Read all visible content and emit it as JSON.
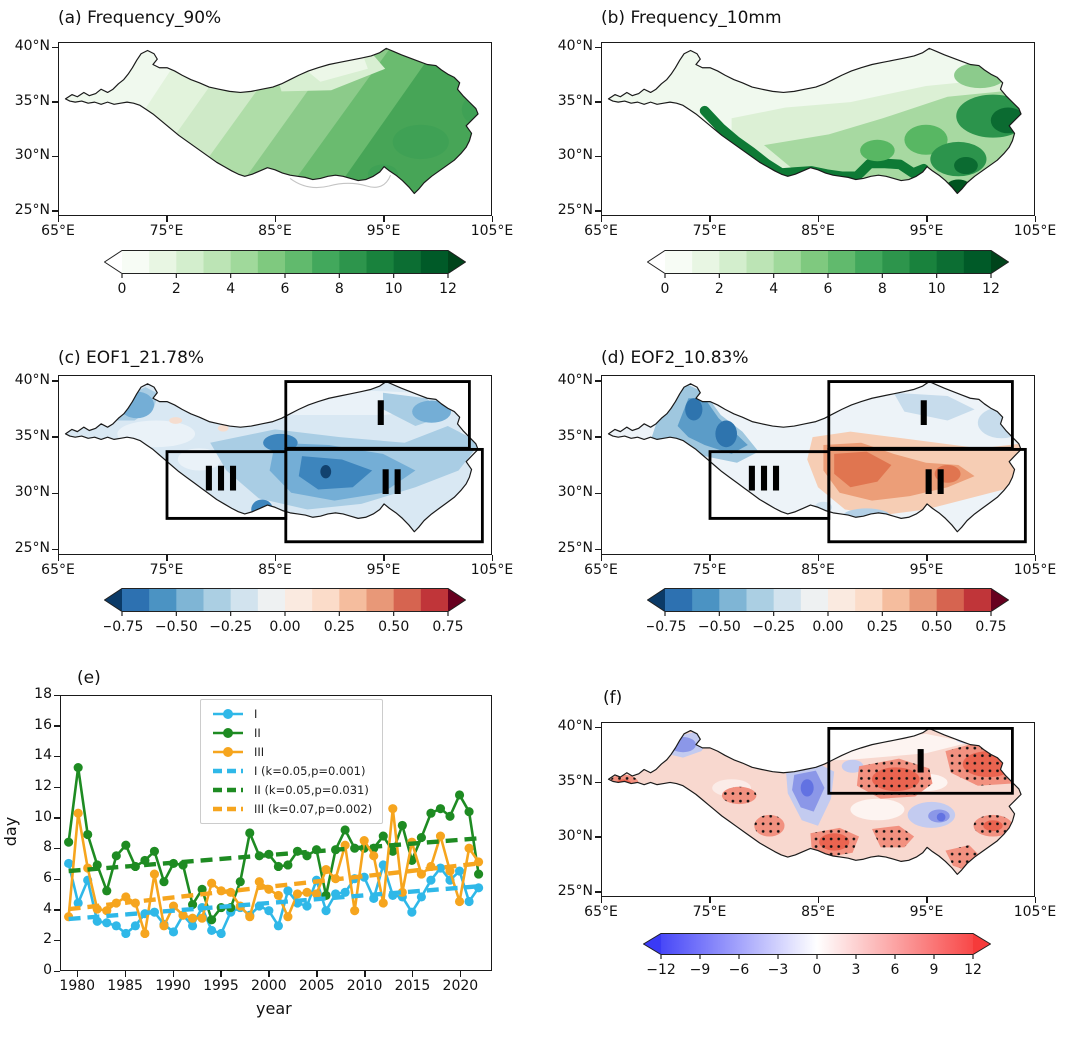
{
  "figure_type": "6-panel climate figure, Tibetan Plateau precipitation-frequency analysis",
  "chart_data": [
    {
      "id": "a",
      "type": "heatmap",
      "subtype": "filled-contour-map",
      "title": "(a) Frequency_90%",
      "lon_range": [
        65,
        105
      ],
      "lat_range": [
        24.5,
        40.5
      ],
      "lon_ticks": {
        "values": [
          65,
          75,
          85,
          95,
          105
        ],
        "labels": [
          "65°E",
          "75°E",
          "85°E",
          "95°E",
          "105°E"
        ]
      },
      "lat_ticks": {
        "values": [
          40,
          35,
          30,
          25
        ],
        "labels": [
          "40°N",
          "35°N",
          "30°N",
          "25°N"
        ]
      },
      "colorbar": {
        "style": "discrete",
        "vmin": 0,
        "vmax": 12,
        "colors": [
          "#f7fcf5",
          "#e8f6e3",
          "#d3eecd",
          "#bce4b5",
          "#a0d99b",
          "#7fc97f",
          "#61ba6d",
          "#42a85c",
          "#2d954c",
          "#19823d",
          "#0c6e33",
          "#005a28"
        ],
        "under": "#ffffff",
        "over": "#00441b",
        "ticks": {
          "values": [
            0,
            2,
            4,
            6,
            8,
            10,
            12
          ],
          "labels": [
            "0",
            "2",
            "4",
            "6",
            "8",
            "10",
            "12"
          ]
        }
      },
      "pattern": "days of precipitation above 90th percentile: low (0-3) in northwest arm, increasing southeastward to 8-10 in the southeast"
    },
    {
      "id": "b",
      "type": "heatmap",
      "subtype": "filled-contour-map",
      "title": "(b) Frequency_10mm",
      "lon_range": [
        65,
        105
      ],
      "lat_range": [
        24.5,
        40.5
      ],
      "lon_ticks": {
        "values": [
          65,
          75,
          85,
          95,
          105
        ],
        "labels": [
          "65°E",
          "75°E",
          "85°E",
          "95°E",
          "105°E"
        ]
      },
      "lat_ticks": {
        "values": [
          40,
          35,
          30,
          25
        ],
        "labels": [
          "40°N",
          "35°N",
          "30°N",
          "25°N"
        ]
      },
      "colorbar": {
        "style": "discrete",
        "vmin": 0,
        "vmax": 12,
        "colors": [
          "#f7fcf5",
          "#e8f6e3",
          "#d3eecd",
          "#bce4b5",
          "#a0d99b",
          "#7fc97f",
          "#61ba6d",
          "#42a85c",
          "#2d954c",
          "#19823d",
          "#0c6e33",
          "#005a28"
        ],
        "under": "#ffffff",
        "over": "#00441b",
        "ticks": {
          "values": [
            0,
            2,
            4,
            6,
            8,
            10,
            12
          ],
          "labels": [
            "0",
            "2",
            "4",
            "6",
            "8",
            "10",
            "12"
          ]
        }
      },
      "pattern": "days with precipitation >=10mm: very low (<2) across north and west, 8-12 along southern Himalayan fringe and in the southeast/east"
    },
    {
      "id": "c",
      "type": "heatmap",
      "subtype": "filled-contour-map",
      "title": "(c) EOF1_21.78%",
      "lon_range": [
        65,
        105
      ],
      "lat_range": [
        24.5,
        40.5
      ],
      "lon_ticks": {
        "values": [
          65,
          75,
          85,
          95,
          105
        ],
        "labels": [
          "65°E",
          "75°E",
          "85°E",
          "95°E",
          "105°E"
        ]
      },
      "lat_ticks": {
        "values": [
          40,
          35,
          30,
          25
        ],
        "labels": [
          "40°N",
          "35°N",
          "30°N",
          "25°N"
        ]
      },
      "colorbar": {
        "style": "discrete",
        "vmin": -0.75,
        "vmax": 0.75,
        "colors": [
          "#2d71b1",
          "#4b93c3",
          "#7fb5d5",
          "#abcfe3",
          "#d2e3ee",
          "#eef1f2",
          "#faeae0",
          "#fbdcc9",
          "#f5bd9e",
          "#e89878",
          "#d66450",
          "#c03539"
        ],
        "under": "#0b3a67",
        "over": "#67001f",
        "ticks": {
          "values": [
            -0.75,
            -0.5,
            -0.25,
            0,
            0.25,
            0.5,
            0.75
          ],
          "labels": [
            "−0.75",
            "−0.50",
            "−0.25",
            "0.00",
            "0.25",
            "0.50",
            "0.75"
          ]
        }
      },
      "regions": [
        {
          "label": "I",
          "lon_min": 86,
          "lon_max": 103,
          "lat_min": 34,
          "lat_max": 40,
          "label_lon": 94.8,
          "label_lat": 37.2
        },
        {
          "label": "II",
          "lon_min": 86,
          "lon_max": 104.2,
          "lat_min": 25.6,
          "lat_max": 33.9,
          "label_lon": 95.8,
          "label_lat": 31.0
        },
        {
          "label": "III",
          "lon_min": 75,
          "lon_max": 86,
          "lat_min": 27.7,
          "lat_max": 33.7,
          "label_lon": 80.0,
          "label_lat": 31.3
        }
      ],
      "pattern": "EOF1 explains 21.78% of variance; loadings predominantly negative (blue), strongest -0.5 to -0.75 over the central plateau"
    },
    {
      "id": "d",
      "type": "heatmap",
      "subtype": "filled-contour-map",
      "title": "(d) EOF2_10.83%",
      "lon_range": [
        65,
        105
      ],
      "lat_range": [
        24.5,
        40.5
      ],
      "lon_ticks": {
        "values": [
          65,
          75,
          85,
          95,
          105
        ],
        "labels": [
          "65°E",
          "75°E",
          "85°E",
          "95°E",
          "105°E"
        ]
      },
      "lat_ticks": {
        "values": [
          40,
          35,
          30,
          25
        ],
        "labels": [
          "40°N",
          "35°N",
          "30°N",
          "25°N"
        ]
      },
      "colorbar": {
        "style": "discrete",
        "vmin": -0.75,
        "vmax": 0.75,
        "colors": [
          "#2d71b1",
          "#4b93c3",
          "#7fb5d5",
          "#abcfe3",
          "#d2e3ee",
          "#eef1f2",
          "#faeae0",
          "#fbdcc9",
          "#f5bd9e",
          "#e89878",
          "#d66450",
          "#c03539"
        ],
        "under": "#0b3a67",
        "over": "#67001f",
        "ticks": {
          "values": [
            -0.75,
            -0.5,
            -0.25,
            0,
            0.25,
            0.5,
            0.75
          ],
          "labels": [
            "−0.75",
            "−0.50",
            "−0.25",
            "0.00",
            "0.25",
            "0.50",
            "0.75"
          ]
        }
      },
      "regions": [
        {
          "label": "I",
          "lon_min": 86,
          "lon_max": 103,
          "lat_min": 34,
          "lat_max": 40,
          "label_lon": 94.8,
          "label_lat": 37.2
        },
        {
          "label": "II",
          "lon_min": 86,
          "lon_max": 104.2,
          "lat_min": 25.6,
          "lat_max": 33.9,
          "label_lon": 95.8,
          "label_lat": 31.0
        },
        {
          "label": "III",
          "lon_min": 75,
          "lon_max": 86,
          "lat_min": 27.7,
          "lat_max": 33.7,
          "label_lon": 80.0,
          "label_lat": 31.3
        }
      ],
      "pattern": "EOF2 explains 10.83% of variance; west-east dipole with negative (blue) loadings northwest and positive (red/orange) loadings over the central-east plateau"
    },
    {
      "id": "e",
      "type": "line",
      "title": "(e)",
      "xlabel": "year",
      "ylabel": "day",
      "xlim": [
        1978.2,
        2023.3
      ],
      "ylim": [
        0,
        18
      ],
      "x_ticks": {
        "values": [
          1980,
          1985,
          1990,
          1995,
          2000,
          2005,
          2010,
          2015,
          2020
        ],
        "labels": [
          "1980",
          "1985",
          "1990",
          "1995",
          "2000",
          "2005",
          "2010",
          "2015",
          "2020"
        ]
      },
      "y_ticks": {
        "values": [
          0,
          2,
          4,
          6,
          8,
          10,
          12,
          14,
          16,
          18
        ],
        "labels": [
          "0",
          "2",
          "4",
          "6",
          "8",
          "10",
          "12",
          "14",
          "16",
          "18"
        ]
      },
      "years": [
        1979,
        1980,
        1981,
        1982,
        1983,
        1984,
        1985,
        1986,
        1987,
        1988,
        1989,
        1990,
        1991,
        1992,
        1993,
        1994,
        1995,
        1996,
        1997,
        1998,
        1999,
        2000,
        2001,
        2002,
        2003,
        2004,
        2005,
        2006,
        2007,
        2008,
        2009,
        2010,
        2011,
        2012,
        2013,
        2014,
        2015,
        2016,
        2017,
        2018,
        2019,
        2020,
        2021,
        2022
      ],
      "series": [
        {
          "name": "I",
          "color": "#2fb8e8",
          "values": [
            7.0,
            4.4,
            5.9,
            3.2,
            3.1,
            2.9,
            2.4,
            2.9,
            3.7,
            3.8,
            3.0,
            2.5,
            3.6,
            2.9,
            4.1,
            2.6,
            2.4,
            3.8,
            4.1,
            3.6,
            4.2,
            3.9,
            2.9,
            5.2,
            4.4,
            4.2,
            5.9,
            3.9,
            5.0,
            5.1,
            6.0,
            6.1,
            4.7,
            6.9,
            4.9,
            4.8,
            3.8,
            4.8,
            5.9,
            6.7,
            5.9,
            6.5,
            4.5,
            5.4
          ]
        },
        {
          "name": "II",
          "color": "#1e8b22",
          "values": [
            8.4,
            13.3,
            8.9,
            6.9,
            5.2,
            7.5,
            8.2,
            6.8,
            7.2,
            7.8,
            5.8,
            7.0,
            6.9,
            4.3,
            5.3,
            3.3,
            4.1,
            4.1,
            5.8,
            9.0,
            7.5,
            7.6,
            6.8,
            6.9,
            7.8,
            7.5,
            7.9,
            4.9,
            7.9,
            9.2,
            8.0,
            8.0,
            8.0,
            8.8,
            7.8,
            9.5,
            7.2,
            8.7,
            10.3,
            10.6,
            10.1,
            11.5,
            10.4,
            6.3
          ]
        },
        {
          "name": "III",
          "color": "#f6a51e",
          "values": [
            3.5,
            10.3,
            6.7,
            4.0,
            3.9,
            4.4,
            4.8,
            4.4,
            2.4,
            6.3,
            2.9,
            4.2,
            3.6,
            3.4,
            3.4,
            5.7,
            5.2,
            5.1,
            4.2,
            3.5,
            5.8,
            5.3,
            4.9,
            3.5,
            5.0,
            5.1,
            5.0,
            6.6,
            6.0,
            8.2,
            3.9,
            8.5,
            7.5,
            4.4,
            10.6,
            5.1,
            8.4,
            6.3,
            6.8,
            8.8,
            6.5,
            4.5,
            8.0,
            7.1
          ]
        }
      ],
      "trend_lines": [
        {
          "name": "I",
          "label": "I (k=0.05,p=0.001)",
          "k": 0.05,
          "p": 0.001,
          "color": "#2fb8e8",
          "start_year": 1979,
          "end_year": 2022,
          "start_value": 3.35,
          "end_value": 5.5
        },
        {
          "name": "II",
          "label": "II (k=0.05,p=0.031)",
          "k": 0.05,
          "p": 0.031,
          "color": "#1e8b22",
          "start_year": 1979,
          "end_year": 2022,
          "start_value": 6.5,
          "end_value": 8.65
        },
        {
          "name": "III",
          "label": "III (k=0.07,p=0.002)",
          "k": 0.07,
          "p": 0.002,
          "color": "#f6a51e",
          "start_year": 1979,
          "end_year": 2022,
          "start_value": 4.0,
          "end_value": 7.0
        }
      ],
      "legend_position": "upper center-left",
      "grid": false
    },
    {
      "id": "f",
      "type": "heatmap",
      "subtype": "filled-contour-map-with-stippling",
      "title": "(f)",
      "lon_range": [
        65,
        105
      ],
      "lat_range": [
        24.5,
        40.5
      ],
      "lon_ticks": {
        "values": [
          65,
          75,
          85,
          95,
          105
        ],
        "labels": [
          "65°E",
          "75°E",
          "85°E",
          "95°E",
          "105°E"
        ]
      },
      "lat_ticks": {
        "values": [
          40,
          35,
          30,
          25
        ],
        "labels": [
          "40°N",
          "35°N",
          "30°N",
          "25°N"
        ]
      },
      "colorbar": {
        "style": "continuous",
        "vmin": -12,
        "vmax": 12,
        "stops": [
          "#4848f8",
          "#ffffff",
          "#f84848"
        ],
        "under": "#3a3af6",
        "over": "#f63a3a",
        "ticks": {
          "values": [
            -12,
            -9,
            -6,
            -3,
            0,
            3,
            6,
            9,
            12
          ],
          "labels": [
            "−12",
            "−9",
            "−6",
            "−3",
            "0",
            "3",
            "6",
            "9",
            "12"
          ]
        }
      },
      "regions": [
        {
          "label": "I",
          "lon_min": 86,
          "lon_max": 103,
          "lat_min": 34,
          "lat_max": 40,
          "label_lon": 94.5,
          "label_lat": 37.0
        }
      ],
      "stippling": "black dots mark statistically significant areas",
      "pattern": "mostly positive (red) values over the plateau with stippled significant cores; weak negative (blue) patches in the north-central plateau and northwest arm"
    }
  ]
}
